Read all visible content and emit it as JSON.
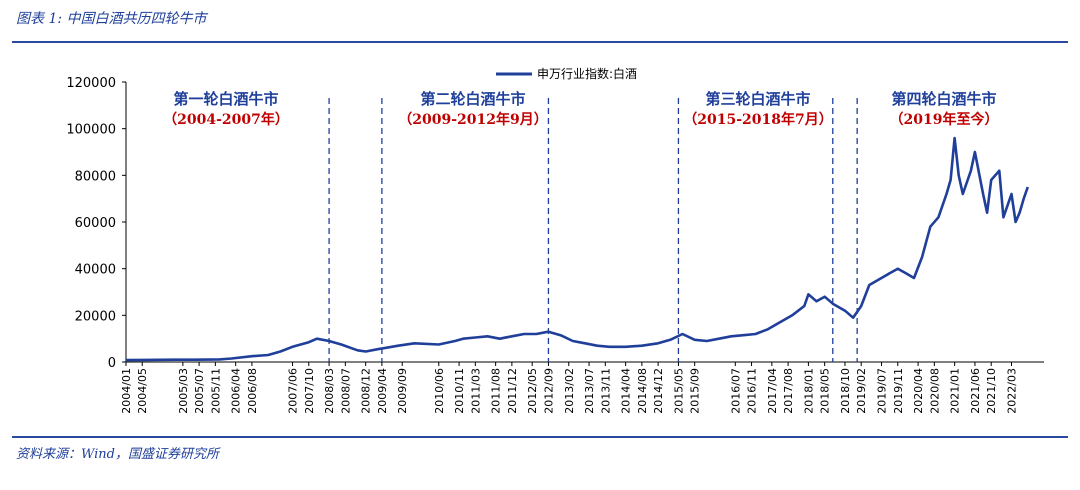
{
  "figure": {
    "title": "图表 1:  中国白酒共历四轮牛市",
    "source": "资料来源：Wind，国盛证券研究所"
  },
  "colors": {
    "series": "#1f3f9a",
    "accent": "#2a4aa0",
    "era_range": "#c00000"
  },
  "chart_data": {
    "type": "line",
    "title": "",
    "xlabel": "",
    "ylabel": "",
    "ylim": [
      0,
      120000
    ],
    "yticks": [
      0,
      20000,
      40000,
      60000,
      80000,
      100000,
      120000
    ],
    "grid": false,
    "legend_position": "top-center",
    "x_tick_labels": [
      "2004/01",
      "2004/05",
      "2005/03",
      "2005/07",
      "2005/11",
      "2006/04",
      "2006/08",
      "2007/06",
      "2007/10",
      "2008/03",
      "2008/07",
      "2008/12",
      "2009/04",
      "2009/09",
      "2010/06",
      "2010/11",
      "2011/03",
      "2011/08",
      "2011/12",
      "2012/05",
      "2012/09",
      "2013/02",
      "2013/07",
      "2013/11",
      "2014/04",
      "2014/08",
      "2014/12",
      "2015/05",
      "2015/09",
      "2016/07",
      "2016/11",
      "2017/04",
      "2017/08",
      "2018/01",
      "2018/05",
      "2018/10",
      "2019/02",
      "2019/07",
      "2019/11",
      "2020/04",
      "2020/08",
      "2021/01",
      "2021/06",
      "2021/10",
      "2022/03"
    ],
    "series": [
      {
        "name": "申万行业指数:白酒",
        "x": [
          "2004/01",
          "2004/06",
          "2005/01",
          "2005/06",
          "2005/12",
          "2006/03",
          "2006/08",
          "2006/12",
          "2007/03",
          "2007/06",
          "2007/10",
          "2007/12",
          "2008/03",
          "2008/06",
          "2008/10",
          "2008/12",
          "2009/03",
          "2009/08",
          "2009/12",
          "2010/06",
          "2010/10",
          "2010/12",
          "2011/03",
          "2011/06",
          "2011/09",
          "2011/12",
          "2012/03",
          "2012/06",
          "2012/09",
          "2012/12",
          "2013/03",
          "2013/06",
          "2013/09",
          "2013/12",
          "2014/04",
          "2014/08",
          "2014/12",
          "2015/03",
          "2015/06",
          "2015/09",
          "2015/12",
          "2016/03",
          "2016/06",
          "2016/09",
          "2016/12",
          "2017/03",
          "2017/06",
          "2017/09",
          "2017/12",
          "2018/01",
          "2018/03",
          "2018/05",
          "2018/07",
          "2018/10",
          "2018/12",
          "2019/02",
          "2019/04",
          "2019/07",
          "2019/09",
          "2019/11",
          "2020/01",
          "2020/03",
          "2020/05",
          "2020/07",
          "2020/09",
          "2020/11",
          "2020/12",
          "2021/01",
          "2021/02",
          "2021/03",
          "2021/05",
          "2021/06",
          "2021/08",
          "2021/09",
          "2021/10",
          "2021/12",
          "2022/01",
          "2022/03",
          "2022/04",
          "2022/05",
          "2022/06",
          "2022/07"
        ],
        "y": [
          800,
          900,
          1000,
          1000,
          1100,
          1500,
          2500,
          3000,
          4500,
          6500,
          8500,
          10000,
          9000,
          7500,
          5000,
          4500,
          5500,
          7000,
          8000,
          7500,
          9000,
          10000,
          10500,
          11000,
          10000,
          11000,
          12000,
          12000,
          13000,
          11500,
          9000,
          8000,
          7000,
          6500,
          6500,
          7000,
          8000,
          9500,
          12000,
          9500,
          9000,
          10000,
          11000,
          11500,
          12000,
          14000,
          17000,
          20000,
          24000,
          29000,
          26000,
          28000,
          25000,
          22000,
          19000,
          24000,
          33000,
          36000,
          38000,
          40000,
          38000,
          36000,
          45000,
          58000,
          62000,
          72000,
          78000,
          96000,
          80000,
          72000,
          82000,
          90000,
          72000,
          64000,
          78000,
          82000,
          62000,
          72000,
          60000,
          64000,
          70000,
          75000
        ]
      }
    ],
    "eras": [
      {
        "title": "第一轮白酒牛市",
        "range": "（2004-2007年）",
        "end": "2008/03"
      },
      {
        "title": "第二轮白酒牛市",
        "range": "（2009-2012年9月）",
        "start": "2009/04",
        "end": "2012/09"
      },
      {
        "title": "第三轮白酒牛市",
        "range": "（2015-2018年7月）",
        "start": "2015/05",
        "end": "2018/07"
      },
      {
        "title": "第四轮白酒牛市",
        "range": "（2019年至今）",
        "start": "2019/01"
      }
    ]
  }
}
